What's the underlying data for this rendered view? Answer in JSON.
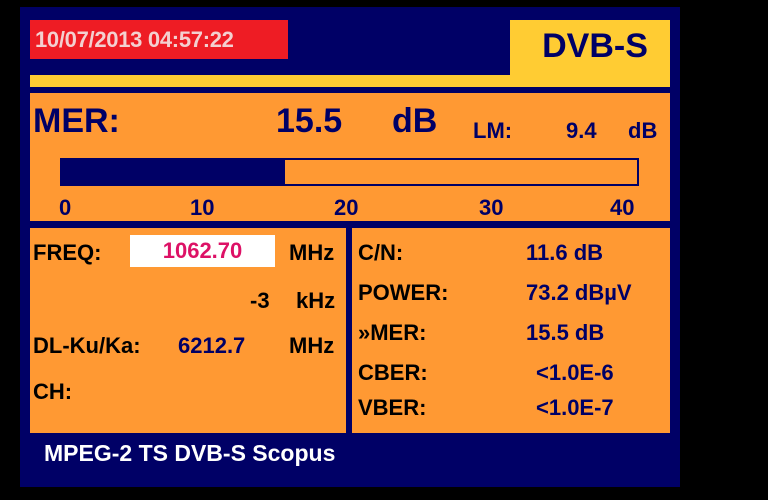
{
  "header": {
    "datetime": "10/07/2013 04:57:22",
    "mode": "DVB-S"
  },
  "mer": {
    "label": "MER:",
    "value": "15.5",
    "unit": "dB",
    "lm_label": "LM:",
    "lm_value": "9.4",
    "lm_unit": "dB",
    "bar_level": 15.5,
    "bar_max": 40,
    "scale": [
      "0",
      "10",
      "20",
      "30",
      "40"
    ]
  },
  "left": {
    "freq_label": "FREQ:",
    "freq_value": "1062.70",
    "freq_unit": "MHz",
    "offset_value": "-3",
    "offset_unit": "kHz",
    "dl_label": "DL-Ku/Ka:",
    "dl_value": "6212.7",
    "dl_unit": "MHz",
    "ch_label": "CH:"
  },
  "right": {
    "items": [
      {
        "label": "C/N:",
        "value": "11.6 dB"
      },
      {
        "label": "POWER:",
        "value": "73.2 dBµV"
      },
      {
        "label": "»MER:",
        "value": "15.5 dB"
      },
      {
        "label": "CBER:",
        "value": "<1.0E-6"
      },
      {
        "label": "VBER:",
        "value": "<1.0E-7"
      }
    ]
  },
  "footer": {
    "text": "MPEG-2 TS DVB-S Scopus"
  },
  "colors": {
    "navy": "#000066",
    "orange": "#ff9933",
    "yellow": "#ffcc33",
    "red": "#ee1c24",
    "freq": "#dd1166"
  }
}
